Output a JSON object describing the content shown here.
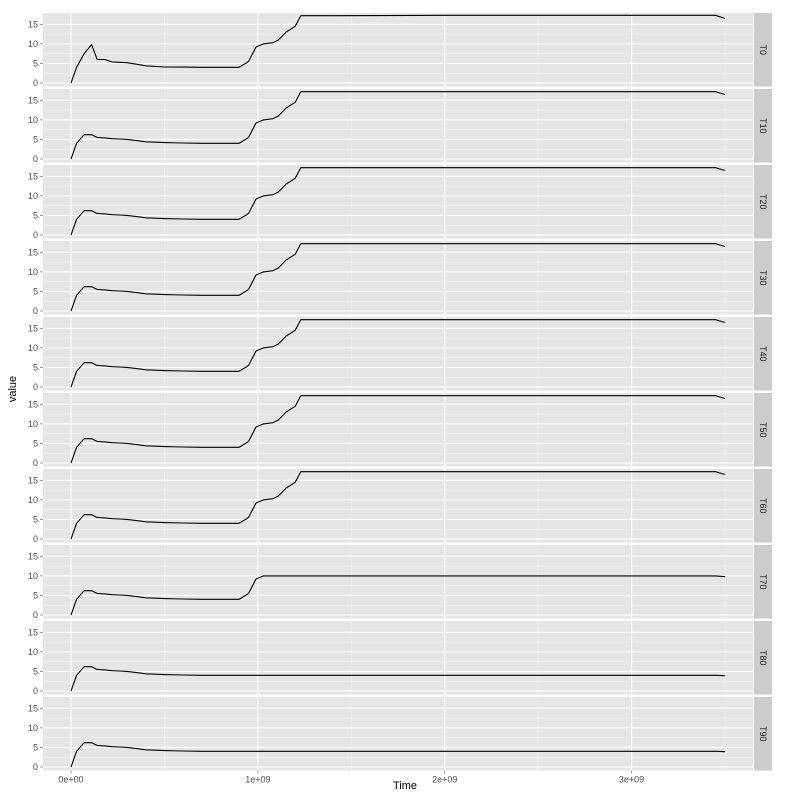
{
  "chart_data": {
    "type": "line",
    "xlabel": "Time",
    "ylabel": "value",
    "xlim": [
      -150000000,
      3650000000
    ],
    "ylim": [
      -0.9,
      17.9
    ],
    "x_ticks": [
      0,
      1000000000,
      2000000000,
      3000000000
    ],
    "x_tick_labels": [
      "0e+00",
      "1e+09",
      "2e+09",
      "3e+09"
    ],
    "y_ticks": [
      0,
      5,
      10,
      15
    ],
    "y_tick_labels": [
      "0",
      "5",
      "10",
      "15"
    ],
    "grid": true,
    "line_color": "#000000",
    "panel_background": "#e5e5e5",
    "strip_background": "#cccccc",
    "x": [
      0,
      30000000,
      70000000,
      110000000,
      140000000,
      180000000,
      220000000,
      260000000,
      300000000,
      350000000,
      400000000,
      500000000,
      600000000,
      700000000,
      800000000,
      900000000,
      950000000,
      990000000,
      1030000000,
      1080000000,
      1110000000,
      1150000000,
      1200000000,
      1230000000,
      1400000000,
      2000000000,
      2500000000,
      3000000000,
      3300000000,
      3450000000,
      3500000000
    ],
    "panels": [
      {
        "label": "T0",
        "values": [
          0,
          4,
          7.5,
          9.8,
          6,
          6,
          5.4,
          5.3,
          5.2,
          4.8,
          4.4,
          4.1,
          4.05,
          4.0,
          4.0,
          4.0,
          5.5,
          9.2,
          10,
          10.3,
          11,
          13,
          14.5,
          17.2,
          17.2,
          17.3,
          17.3,
          17.3,
          17.3,
          17.3,
          16.5
        ]
      },
      {
        "label": "T10",
        "values": [
          0,
          4,
          6.2,
          6.2,
          5.5,
          5.4,
          5.2,
          5.1,
          5.0,
          4.7,
          4.4,
          4.2,
          4.1,
          4.0,
          4.0,
          4.0,
          5.5,
          9.2,
          10,
          10.3,
          11,
          13,
          14.5,
          17.2,
          17.2,
          17.2,
          17.2,
          17.2,
          17.2,
          17.2,
          16.5
        ]
      },
      {
        "label": "T20",
        "values": [
          0,
          4,
          6.2,
          6.2,
          5.5,
          5.4,
          5.2,
          5.1,
          5.0,
          4.7,
          4.4,
          4.2,
          4.1,
          4.0,
          4.0,
          4.0,
          5.5,
          9.2,
          10,
          10.3,
          11,
          13,
          14.5,
          17.2,
          17.2,
          17.2,
          17.2,
          17.2,
          17.2,
          17.2,
          16.5
        ]
      },
      {
        "label": "T30",
        "values": [
          0,
          4,
          6.2,
          6.2,
          5.5,
          5.4,
          5.2,
          5.1,
          5.0,
          4.7,
          4.4,
          4.2,
          4.1,
          4.0,
          4.0,
          4.0,
          5.5,
          9.2,
          10,
          10.3,
          11,
          13,
          14.5,
          17.2,
          17.2,
          17.2,
          17.2,
          17.2,
          17.2,
          17.2,
          16.5
        ]
      },
      {
        "label": "T40",
        "values": [
          0,
          4,
          6.2,
          6.2,
          5.5,
          5.4,
          5.2,
          5.1,
          5.0,
          4.7,
          4.4,
          4.2,
          4.1,
          4.0,
          4.0,
          4.0,
          5.5,
          9.2,
          10,
          10.3,
          11,
          13,
          14.5,
          17.2,
          17.2,
          17.2,
          17.2,
          17.2,
          17.2,
          17.2,
          16.5
        ]
      },
      {
        "label": "T50",
        "values": [
          0,
          4,
          6.2,
          6.2,
          5.5,
          5.4,
          5.2,
          5.1,
          5.0,
          4.7,
          4.4,
          4.2,
          4.1,
          4.0,
          4.0,
          4.0,
          5.5,
          9.2,
          10,
          10.3,
          11,
          13,
          14.5,
          17.2,
          17.2,
          17.2,
          17.2,
          17.2,
          17.2,
          17.2,
          16.5
        ]
      },
      {
        "label": "T60",
        "values": [
          0,
          4,
          6.2,
          6.2,
          5.5,
          5.4,
          5.2,
          5.1,
          5.0,
          4.7,
          4.4,
          4.2,
          4.1,
          4.0,
          4.0,
          4.0,
          5.5,
          9.2,
          10,
          10.3,
          11,
          13,
          14.5,
          17.2,
          17.2,
          17.2,
          17.2,
          17.2,
          17.2,
          17.2,
          16.5
        ]
      },
      {
        "label": "T70",
        "values": [
          0,
          4,
          6.2,
          6.2,
          5.5,
          5.4,
          5.2,
          5.1,
          5.0,
          4.7,
          4.4,
          4.2,
          4.1,
          4.0,
          4.0,
          4.0,
          5.5,
          9.2,
          10,
          10,
          10,
          10,
          10,
          10,
          10,
          10,
          10,
          10,
          10,
          10,
          9.8
        ]
      },
      {
        "label": "T80",
        "values": [
          0,
          4,
          6.2,
          6.2,
          5.5,
          5.4,
          5.2,
          5.1,
          5.0,
          4.7,
          4.4,
          4.2,
          4.1,
          4.0,
          4.0,
          4.0,
          4.0,
          4.0,
          4.0,
          4.0,
          4.0,
          4.0,
          4.0,
          4.0,
          4.0,
          4.0,
          4.0,
          4.0,
          4.0,
          4.0,
          3.9
        ]
      },
      {
        "label": "T90",
        "values": [
          0,
          4,
          6.2,
          6.2,
          5.5,
          5.4,
          5.2,
          5.1,
          5.0,
          4.7,
          4.4,
          4.2,
          4.1,
          4.0,
          4.0,
          4.0,
          4.0,
          4.0,
          4.0,
          4.0,
          4.0,
          4.0,
          4.0,
          4.0,
          4.0,
          4.0,
          4.0,
          4.0,
          4.0,
          4.0,
          3.9
        ]
      }
    ]
  }
}
